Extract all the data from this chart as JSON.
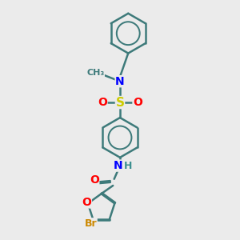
{
  "background_color": "#ebebeb",
  "bond_color": "#3d7a7a",
  "atom_colors": {
    "N": "#0000ff",
    "O": "#ff0000",
    "S": "#cccc00",
    "Br": "#cc8800",
    "C": "#3d7a7a",
    "H": "#3d9090"
  },
  "line_width": 1.8,
  "font_size": 10,
  "figsize": [
    3.0,
    3.0
  ],
  "dpi": 100
}
